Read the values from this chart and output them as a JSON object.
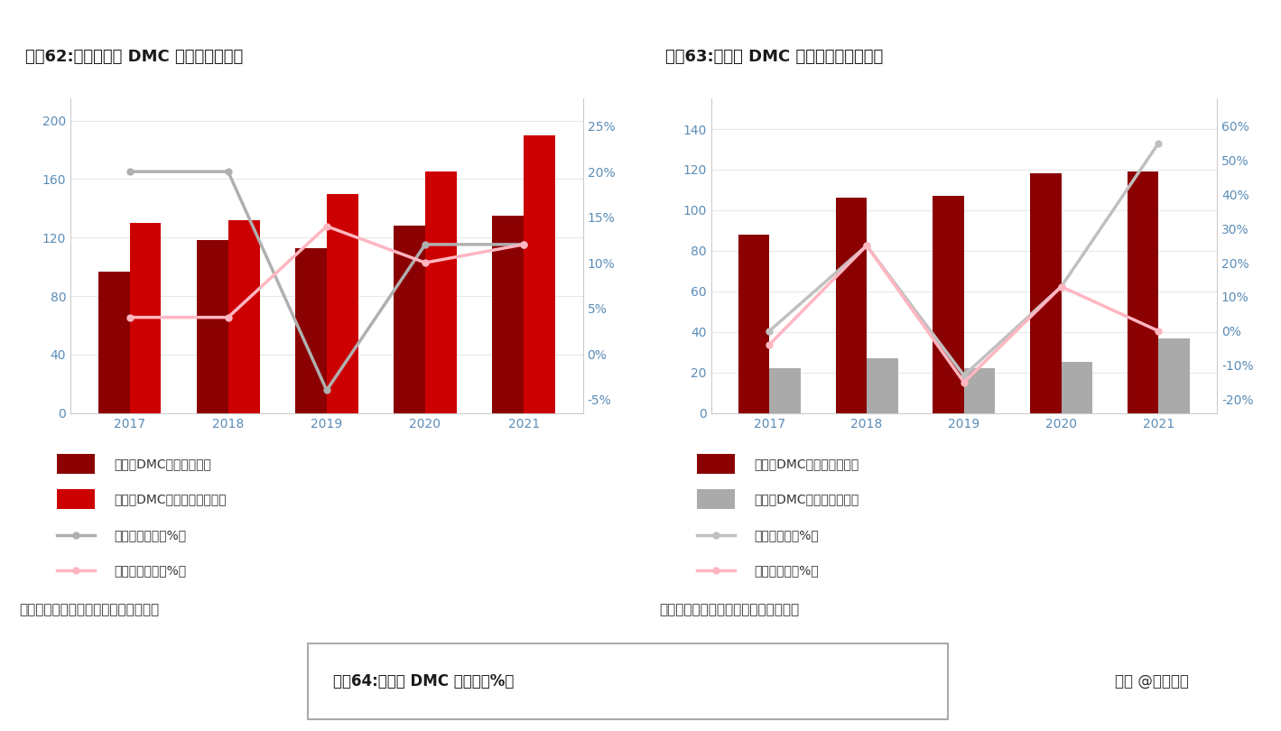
{
  "chart1": {
    "title": "图表62:我国有机硅 DMC 产能及产量趋势",
    "years": [
      "2017",
      "2018",
      "2019",
      "2020",
      "2021"
    ],
    "production": [
      97,
      118,
      113,
      128,
      135
    ],
    "capacity": [
      130,
      132,
      150,
      165,
      190
    ],
    "prod_growth_vals": [
      0.2,
      0.2,
      -0.04,
      0.12,
      0.12
    ],
    "cap_growth_vals": [
      0.04,
      0.04,
      0.14,
      0.1,
      0.12
    ],
    "left_ylim": [
      0,
      215
    ],
    "left_yticks": [
      0,
      40,
      80,
      120,
      160,
      200
    ],
    "right_ylim": [
      -0.065,
      0.28
    ],
    "right_ytick_vals": [
      -0.05,
      0.0,
      0.05,
      0.1,
      0.15,
      0.2,
      0.25
    ],
    "right_ytick_labels": [
      "-5%",
      "0%",
      "5%",
      "10%",
      "15%",
      "20%",
      "25%"
    ],
    "bar_dark_color": "#8B0000",
    "bar_light_color": "#CC0000",
    "line1_color": "#B0B0B0",
    "line2_color": "#FFB6C1",
    "legend": [
      "有机硅DMC产量（万吨）",
      "有机硅DMC有效产能（万吨）",
      "产量同比增速（%）",
      "产能同比增速（%）"
    ]
  },
  "chart2": {
    "title": "图表63:有机硅 DMC 消费量及出口量趋势",
    "years": [
      "2017",
      "2018",
      "2019",
      "2020",
      "2021"
    ],
    "consumption": [
      88,
      106,
      107,
      118,
      119
    ],
    "export": [
      22,
      27,
      22,
      25,
      37
    ],
    "cons_growth_vals": [
      0.0,
      0.25,
      -0.13,
      0.13,
      0.55
    ],
    "exp_growth_vals": [
      -0.04,
      0.25,
      -0.15,
      0.13,
      0.0
    ],
    "left_ylim": [
      0,
      155
    ],
    "left_yticks": [
      0,
      20,
      40,
      60,
      80,
      100,
      120,
      140
    ],
    "right_ylim": [
      -0.24,
      0.68
    ],
    "right_ytick_vals": [
      -0.2,
      -0.1,
      0.0,
      0.1,
      0.2,
      0.3,
      0.4,
      0.5,
      0.6
    ],
    "right_ytick_labels": [
      "-20%",
      "-10%",
      "0%",
      "10%",
      "20%",
      "30%",
      "40%",
      "50%",
      "60%"
    ],
    "bar_dark_color": "#8B0000",
    "bar_gray_color": "#AAAAAA",
    "line1_color": "#C0C0C0",
    "line2_color": "#FFB6C1",
    "legend": [
      "有机硅DMC消费量（万吨）",
      "有机硅DMC出口量（万吨）",
      "消费量同比（%）",
      "出口量同比（%）"
    ]
  },
  "source_text": "资料来源：百川盈孚，万联证券研究所",
  "chart3_title": "图表64:有机硅 DMC 开工率（%）",
  "watermark": "头条 @远瞻智库",
  "axis_label_color": "#5B8DB8",
  "title_bg_color": "#F0F0F0",
  "chart_bg_color": "#FFFFFF",
  "plot_bg_color": "#FFFFFF",
  "grid_color": "#E8E8E8",
  "spine_color": "#CCCCCC"
}
